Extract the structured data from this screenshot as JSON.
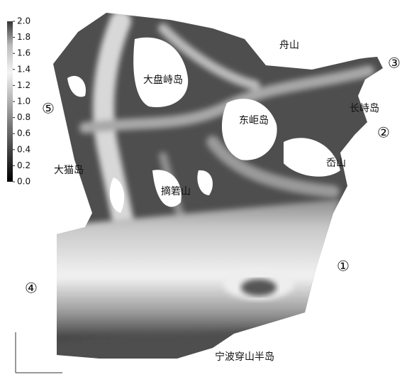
{
  "colorbar": {
    "range": [
      0,
      2
    ],
    "ticks": [
      {
        "value": 2.0,
        "label": "2.0"
      },
      {
        "value": 1.8,
        "label": "1.8"
      },
      {
        "value": 1.6,
        "label": "1.6"
      },
      {
        "value": 1.4,
        "label": "1.4"
      },
      {
        "value": 1.2,
        "label": "1.2"
      },
      {
        "value": 1.0,
        "label": "1.0"
      },
      {
        "value": 0.8,
        "label": "0.8"
      },
      {
        "value": 0.6,
        "label": "0.6"
      },
      {
        "value": 0.4,
        "label": "0.4"
      },
      {
        "value": 0.2,
        "label": "0.2"
      },
      {
        "value": 0.0,
        "label": "0.0"
      }
    ]
  },
  "places": [
    "舟山",
    "大盘峙岛",
    "东岠岛",
    "长峙岛",
    "岙山",
    "大猫岛",
    "摘箬山",
    "宁波穿山半岛"
  ],
  "markers": [
    "①",
    "②",
    "③",
    "④",
    "⑤"
  ]
}
